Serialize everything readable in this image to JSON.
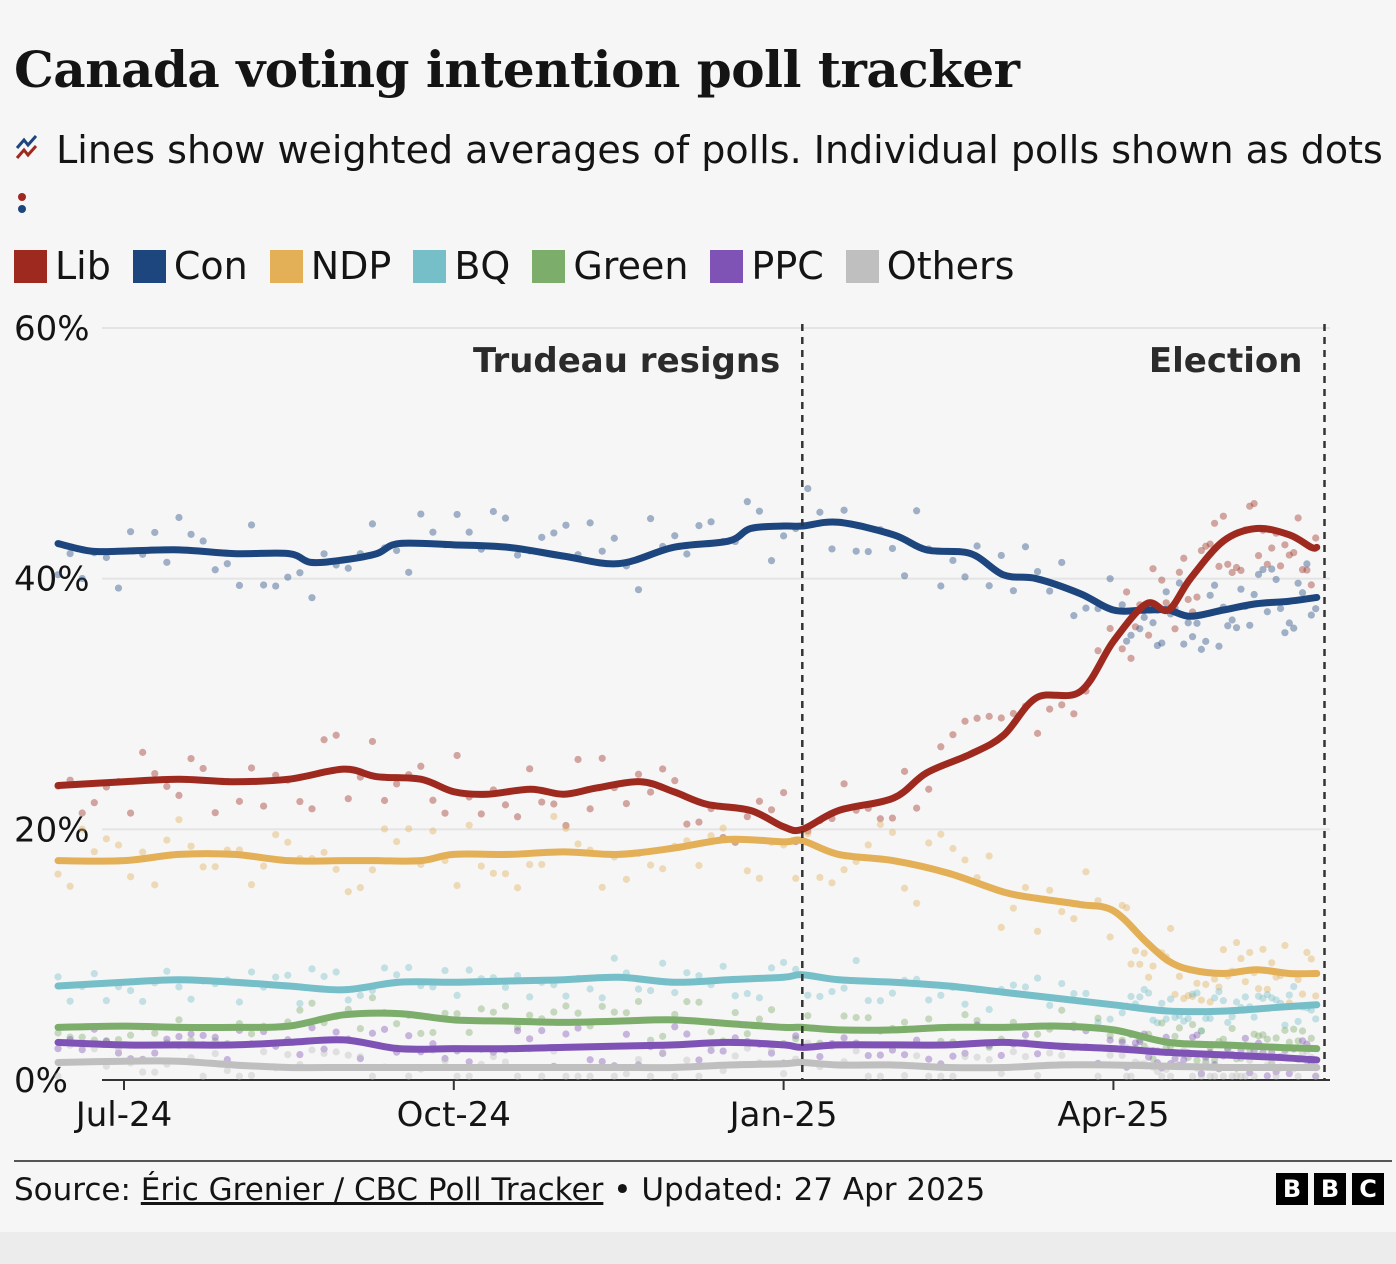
{
  "title": "Canada voting intention poll tracker",
  "subtitle": "Lines show weighted averages of polls. Individual polls shown as dots",
  "footer": {
    "source_label": "Source:",
    "source_name": "Éric Grenier / CBC Poll Tracker",
    "updated": "• Updated: 27 Apr 2025",
    "logo": [
      "B",
      "B",
      "C"
    ]
  },
  "chart_data": {
    "type": "line",
    "title": "Canada voting intention poll tracker",
    "xlabel": "",
    "ylabel": "",
    "ylim": [
      0,
      60
    ],
    "xlim_months": [
      -0.2,
      10.97
    ],
    "y_ticks": [
      "0%",
      "20%",
      "40%",
      "60%"
    ],
    "y_tick_values": [
      0,
      20,
      40,
      60
    ],
    "x_ticks": [
      "Jul-24",
      "Oct-24",
      "Jan-25",
      "Apr-25"
    ],
    "x_tick_values": [
      0,
      3,
      6,
      9
    ],
    "annotations": [
      {
        "label": "Trudeau resigns",
        "x": 6.17
      },
      {
        "label": "Election",
        "x": 10.92
      }
    ],
    "series": [
      {
        "name": "Lib",
        "color": "#9e2a1f",
        "x": [
          -0.6,
          0,
          0.5,
          1,
          1.5,
          2,
          2.3,
          2.7,
          3,
          3.3,
          3.7,
          4,
          4.3,
          4.7,
          5,
          5.3,
          5.7,
          6,
          6.17,
          6.5,
          7,
          7.3,
          7.7,
          8,
          8.3,
          8.7,
          9,
          9.3,
          9.5,
          9.7,
          10,
          10.3,
          10.6,
          10.8,
          10.85
        ],
        "y": [
          23.5,
          23.8,
          24,
          23.8,
          24,
          24.8,
          24.2,
          24,
          23,
          22.8,
          23.2,
          22.8,
          23.3,
          23.8,
          23,
          22,
          21.5,
          20.2,
          20,
          21.5,
          22.5,
          24.5,
          26,
          27.5,
          30.5,
          31,
          35,
          38,
          37.5,
          40,
          43,
          44,
          43.5,
          42.5,
          42.5
        ]
      },
      {
        "name": "Con",
        "color": "#1d467f",
        "x": [
          -0.6,
          -0.3,
          0,
          0.5,
          1,
          1.5,
          1.7,
          2,
          2.3,
          2.5,
          3,
          3.5,
          4,
          4.5,
          5,
          5.5,
          5.7,
          6,
          6.17,
          6.5,
          7,
          7.3,
          7.7,
          8,
          8.3,
          8.7,
          9,
          9.3,
          9.5,
          9.7,
          10,
          10.3,
          10.6,
          10.85
        ],
        "y": [
          42.8,
          42.2,
          42.2,
          42.3,
          42,
          42,
          41.3,
          41.5,
          42,
          42.8,
          42.7,
          42.5,
          41.8,
          41.2,
          42.5,
          43,
          44,
          44.2,
          44.2,
          44.5,
          43.5,
          42.3,
          42,
          40.3,
          40,
          38.8,
          37.5,
          37.5,
          37.5,
          37,
          37.5,
          38,
          38.2,
          38.5
        ]
      },
      {
        "name": "NDP",
        "color": "#e3b058",
        "x": [
          -0.6,
          0,
          0.5,
          1,
          1.5,
          2,
          2.3,
          2.7,
          3,
          3.5,
          4,
          4.5,
          5,
          5.5,
          6,
          6.17,
          6.5,
          7,
          7.5,
          8,
          8.3,
          8.7,
          9,
          9.3,
          9.5,
          9.7,
          10,
          10.3,
          10.6,
          10.85
        ],
        "y": [
          17.5,
          17.5,
          18,
          18,
          17.5,
          17.5,
          17.5,
          17.5,
          18,
          18,
          18.2,
          18,
          18.5,
          19.2,
          19,
          19.1,
          18,
          17.5,
          16.5,
          15,
          14.5,
          14,
          13.5,
          11,
          9.5,
          8.8,
          8.5,
          8.8,
          8.5,
          8.5
        ]
      },
      {
        "name": "BQ",
        "color": "#76bfc8",
        "x": [
          -0.6,
          0,
          0.5,
          1,
          1.5,
          2,
          2.5,
          3,
          3.5,
          4,
          4.5,
          5,
          5.5,
          6,
          6.17,
          6.5,
          7,
          7.5,
          8,
          8.5,
          9,
          9.5,
          10,
          10.5,
          10.85
        ],
        "y": [
          7.5,
          7.8,
          8,
          7.8,
          7.5,
          7.2,
          7.8,
          7.8,
          7.9,
          8,
          8.2,
          7.8,
          8,
          8.2,
          8.4,
          8,
          7.8,
          7.5,
          7,
          6.5,
          6,
          5.5,
          5.5,
          5.8,
          6
        ]
      },
      {
        "name": "Green",
        "color": "#7cad6b",
        "x": [
          -0.6,
          0,
          0.5,
          1,
          1.5,
          2,
          2.5,
          3,
          3.5,
          4,
          4.5,
          5,
          5.5,
          6,
          6.17,
          6.5,
          7,
          7.5,
          8,
          8.5,
          9,
          9.5,
          10,
          10.5,
          10.85
        ],
        "y": [
          4.2,
          4.3,
          4.2,
          4.2,
          4.3,
          5.2,
          5.3,
          4.8,
          4.7,
          4.6,
          4.7,
          4.8,
          4.5,
          4.2,
          4.2,
          4,
          4,
          4.2,
          4.2,
          4.3,
          4,
          3,
          2.8,
          2.6,
          2.5
        ]
      },
      {
        "name": "PPC",
        "color": "#7f53b6",
        "x": [
          -0.6,
          0,
          0.5,
          1,
          1.5,
          2,
          2.5,
          3,
          3.5,
          4,
          4.5,
          5,
          5.5,
          6,
          6.17,
          6.5,
          7,
          7.5,
          8,
          8.5,
          9,
          9.5,
          10,
          10.5,
          10.85
        ],
        "y": [
          3,
          2.8,
          2.8,
          2.8,
          3,
          3.2,
          2.5,
          2.5,
          2.5,
          2.6,
          2.7,
          2.8,
          3,
          2.8,
          2.6,
          2.8,
          2.8,
          2.8,
          3,
          2.7,
          2.5,
          2.2,
          2,
          1.8,
          1.6
        ]
      },
      {
        "name": "Others",
        "color": "#bfbfbf",
        "x": [
          -0.6,
          0,
          0.5,
          1,
          1.5,
          2,
          2.5,
          3,
          3.5,
          4,
          4.5,
          5,
          5.5,
          6,
          6.17,
          6.5,
          7,
          7.5,
          8,
          8.5,
          9,
          9.5,
          10,
          10.5,
          10.85
        ],
        "y": [
          1.4,
          1.5,
          1.5,
          1.2,
          1,
          1,
          1,
          1,
          1,
          1,
          1,
          1,
          1.2,
          1.3,
          1.4,
          1.2,
          1.2,
          1,
          1,
          1.2,
          1.2,
          1.1,
          1,
          1,
          1
        ]
      }
    ]
  }
}
